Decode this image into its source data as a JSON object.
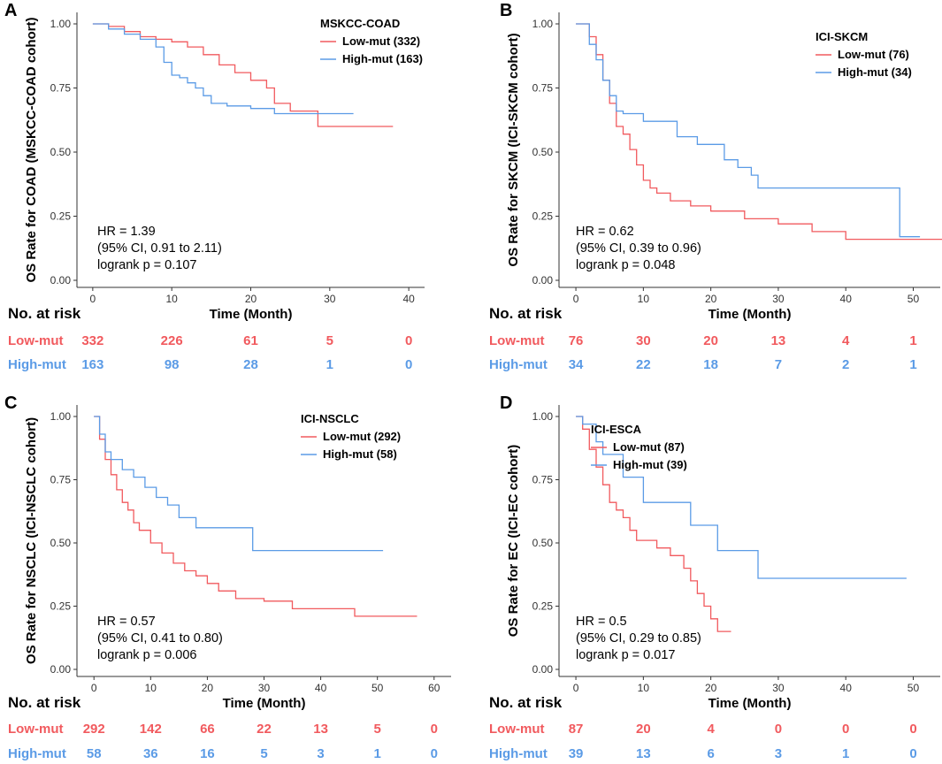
{
  "colors": {
    "low": "#F15A5E",
    "high": "#5B9BE6",
    "axis": "#333333"
  },
  "risk_header": "No. at risk",
  "risk_labels": {
    "low": "Low-mut",
    "high": "High-mut"
  },
  "chart_data": [
    {
      "letter": "A",
      "type": "line",
      "title": "MSKCC-COAD",
      "ylabel": "OS Rate for COAD (MSKCC-COAD cohort)",
      "xlabel": "Time (Month)",
      "xlim": [
        -2,
        42
      ],
      "ylim": [
        0,
        1
      ],
      "xticks": [
        0,
        10,
        20,
        30,
        40
      ],
      "yticks": [
        0.0,
        0.25,
        0.5,
        0.75,
        1.0
      ],
      "ytick_labels": [
        "0.00",
        "0.25",
        "0.50",
        "0.75",
        "1.00"
      ],
      "series": [
        {
          "name": "Low-mut (332)",
          "group": "low",
          "x": [
            0,
            2,
            4,
            6,
            8,
            10,
            12,
            14,
            16,
            18,
            20,
            22,
            23,
            25,
            28.5,
            38
          ],
          "y": [
            1.0,
            0.99,
            0.97,
            0.95,
            0.94,
            0.93,
            0.91,
            0.88,
            0.84,
            0.81,
            0.78,
            0.75,
            0.69,
            0.66,
            0.6,
            0.6
          ]
        },
        {
          "name": "High-mut (163)",
          "group": "high",
          "x": [
            0,
            2,
            4,
            6,
            8,
            9,
            10,
            11,
            12,
            13,
            14,
            15,
            17,
            20,
            23,
            33
          ],
          "y": [
            1.0,
            0.98,
            0.96,
            0.94,
            0.91,
            0.85,
            0.8,
            0.79,
            0.77,
            0.75,
            0.72,
            0.69,
            0.68,
            0.67,
            0.65,
            0.65
          ]
        }
      ],
      "stats": [
        "HR = 1.39",
        "(95% CI, 0.91 to 2.11)",
        "logrank p = 0.107"
      ],
      "risk_times": [
        0,
        10,
        20,
        30,
        40
      ],
      "risk_low": [
        "332",
        "226",
        "61",
        "5",
        "0"
      ],
      "risk_high": [
        "163",
        "98",
        "28",
        "1",
        "0"
      ]
    },
    {
      "letter": "B",
      "type": "line",
      "title": "ICI-SKCM",
      "ylabel": "OS Rate for SKCM (ICI-SKCM cohort)",
      "xlabel": "Time (Month)",
      "xlim": [
        -2.5,
        54
      ],
      "ylim": [
        0,
        1
      ],
      "xticks": [
        0,
        10,
        20,
        30,
        40,
        50
      ],
      "yticks": [
        0.0,
        0.25,
        0.5,
        0.75,
        1.0
      ],
      "ytick_labels": [
        "0.00",
        "0.25",
        "0.50",
        "0.75",
        "1.00"
      ],
      "series": [
        {
          "name": "Low-mut (76)",
          "group": "low",
          "x": [
            0,
            2,
            3,
            4,
            5,
            6,
            7,
            8,
            9,
            10,
            11,
            12,
            14,
            17,
            20,
            25,
            30,
            35,
            40,
            55
          ],
          "y": [
            1.0,
            0.95,
            0.88,
            0.78,
            0.69,
            0.6,
            0.57,
            0.51,
            0.45,
            0.39,
            0.36,
            0.34,
            0.31,
            0.29,
            0.27,
            0.24,
            0.22,
            0.19,
            0.16,
            0.16
          ]
        },
        {
          "name": "High-mut (34)",
          "group": "high",
          "x": [
            0,
            2,
            3,
            4,
            5,
            6,
            7,
            10,
            15,
            18,
            22,
            24,
            26,
            27,
            30,
            42,
            48,
            51
          ],
          "y": [
            1.0,
            0.92,
            0.86,
            0.78,
            0.72,
            0.66,
            0.65,
            0.62,
            0.56,
            0.53,
            0.47,
            0.44,
            0.41,
            0.36,
            0.36,
            0.36,
            0.17,
            0.17
          ]
        }
      ],
      "stats": [
        "HR = 0.62",
        "(95% CI, 0.39 to 0.96)",
        "logrank p = 0.048"
      ],
      "risk_times": [
        0,
        10,
        20,
        30,
        40,
        50
      ],
      "risk_low": [
        "76",
        "30",
        "20",
        "13",
        "4",
        "1"
      ],
      "risk_high": [
        "34",
        "22",
        "18",
        "7",
        "2",
        "1"
      ]
    },
    {
      "letter": "C",
      "type": "line",
      "title": "ICI-NSCLC",
      "ylabel": "OS Rate for NSCLC (ICI-NSCLC cohort)",
      "xlabel": "Time (Month)",
      "xlim": [
        -3,
        63
      ],
      "ylim": [
        0,
        1
      ],
      "xticks": [
        0,
        10,
        20,
        30,
        40,
        50,
        60
      ],
      "yticks": [
        0.0,
        0.25,
        0.5,
        0.75,
        1.0
      ],
      "ytick_labels": [
        "0.00",
        "0.25",
        "0.50",
        "0.75",
        "1.00"
      ],
      "series": [
        {
          "name": "Low-mut (292)",
          "group": "low",
          "x": [
            0,
            1,
            2,
            3,
            4,
            5,
            6,
            7,
            8,
            10,
            12,
            14,
            16,
            18,
            20,
            22,
            25,
            30,
            35,
            40,
            46,
            57
          ],
          "y": [
            1.0,
            0.91,
            0.83,
            0.77,
            0.71,
            0.66,
            0.63,
            0.58,
            0.55,
            0.5,
            0.46,
            0.42,
            0.39,
            0.37,
            0.34,
            0.31,
            0.28,
            0.27,
            0.24,
            0.24,
            0.21,
            0.21
          ]
        },
        {
          "name": "High-mut (58)",
          "group": "high",
          "x": [
            0,
            1,
            2,
            3,
            5,
            7,
            9,
            11,
            13,
            15,
            18,
            25,
            28,
            51
          ],
          "y": [
            1.0,
            0.93,
            0.86,
            0.83,
            0.79,
            0.76,
            0.72,
            0.68,
            0.65,
            0.6,
            0.56,
            0.56,
            0.47,
            0.47
          ]
        }
      ],
      "stats": [
        "HR = 0.57",
        "(95% CI, 0.41 to 0.80)",
        "logrank p = 0.006"
      ],
      "risk_times": [
        0,
        10,
        20,
        30,
        40,
        50,
        60
      ],
      "risk_low": [
        "292",
        "142",
        "66",
        "22",
        "13",
        "5",
        "0"
      ],
      "risk_high": [
        "58",
        "36",
        "16",
        "5",
        "3",
        "1",
        "0"
      ]
    },
    {
      "letter": "D",
      "type": "line",
      "title": "ICI-ESCA",
      "ylabel": "OS Rate for EC (ICI-EC cohort)",
      "xlabel": "Time (Month)",
      "xlim": [
        -2.5,
        54
      ],
      "ylim": [
        0,
        1
      ],
      "xticks": [
        0,
        10,
        20,
        30,
        40,
        50
      ],
      "yticks": [
        0.0,
        0.25,
        0.5,
        0.75,
        1.0
      ],
      "ytick_labels": [
        "0.00",
        "0.25",
        "0.50",
        "0.75",
        "1.00"
      ],
      "series": [
        {
          "name": "Low-mut (87)",
          "group": "low",
          "x": [
            0,
            1,
            2,
            3,
            4,
            5,
            6,
            7,
            8,
            9,
            12,
            14,
            16,
            17,
            18,
            19,
            20,
            21,
            23
          ],
          "y": [
            1.0,
            0.95,
            0.87,
            0.8,
            0.73,
            0.66,
            0.63,
            0.6,
            0.55,
            0.51,
            0.48,
            0.45,
            0.4,
            0.35,
            0.3,
            0.25,
            0.2,
            0.15,
            0.15
          ]
        },
        {
          "name": "High-mut (39)",
          "group": "high",
          "x": [
            0,
            1,
            3,
            4,
            7,
            10,
            17,
            21,
            27,
            49
          ],
          "y": [
            1.0,
            0.97,
            0.9,
            0.85,
            0.76,
            0.66,
            0.57,
            0.47,
            0.36,
            0.36
          ]
        }
      ],
      "stats": [
        "HR = 0.5",
        "(95% CI, 0.29 to 0.85)",
        "logrank p = 0.017"
      ],
      "risk_times": [
        0,
        10,
        20,
        30,
        40,
        50
      ],
      "risk_low": [
        "87",
        "20",
        "4",
        "0",
        "0",
        "0"
      ],
      "risk_high": [
        "39",
        "13",
        "6",
        "3",
        "1",
        "0"
      ]
    }
  ]
}
